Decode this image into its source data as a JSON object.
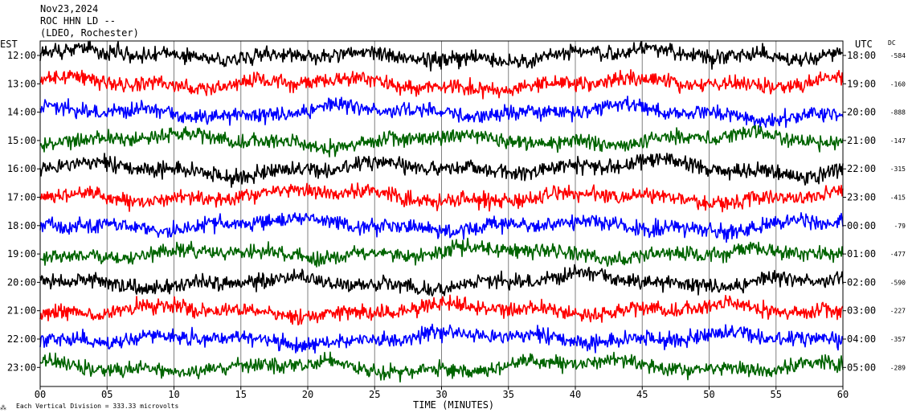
{
  "header": {
    "date": "Nov23,2024",
    "station": "ROC HHN LD --",
    "network": "(LDEO, Rochester)"
  },
  "axis": {
    "left_title": "EST",
    "right_title": "UTC",
    "dc_title": "DC",
    "xlabel": "TIME (MINUTES)",
    "xticks": [
      "00",
      "05",
      "10",
      "15",
      "20",
      "25",
      "30",
      "35",
      "40",
      "45",
      "50",
      "55",
      "60"
    ],
    "xlim": [
      0,
      60
    ]
  },
  "footer": {
    "scale_mark": "⁂",
    "scale_note": "Each Vertical Division =  333.33 microvolts"
  },
  "colors": {
    "black": "#000000",
    "red": "#ff0000",
    "blue": "#0000ff",
    "green": "#006400"
  },
  "chart_data": {
    "type": "line",
    "title": "Nov23,2024 ROC HHN LD --",
    "xlabel": "TIME (MINUTES)",
    "xlim": [
      0,
      60
    ],
    "grid": true,
    "rows": [
      {
        "est": "12:00",
        "utc": "18:00",
        "dc": "-584",
        "color": "black"
      },
      {
        "est": "13:00",
        "utc": "19:00",
        "dc": "-160",
        "color": "red"
      },
      {
        "est": "14:00",
        "utc": "20:00",
        "dc": "-888",
        "color": "blue"
      },
      {
        "est": "15:00",
        "utc": "21:00",
        "dc": "-147",
        "color": "green"
      },
      {
        "est": "16:00",
        "utc": "22:00",
        "dc": "-315",
        "color": "black"
      },
      {
        "est": "17:00",
        "utc": "23:00",
        "dc": "-415",
        "color": "red"
      },
      {
        "est": "18:00",
        "utc": "00:00",
        "dc": "-79",
        "color": "blue"
      },
      {
        "est": "19:00",
        "utc": "01:00",
        "dc": "-477",
        "color": "green"
      },
      {
        "est": "20:00",
        "utc": "02:00",
        "dc": "-590",
        "color": "black"
      },
      {
        "est": "21:00",
        "utc": "03:00",
        "dc": "-227",
        "color": "red"
      },
      {
        "est": "22:00",
        "utc": "04:00",
        "dc": "-357",
        "color": "blue"
      },
      {
        "est": "23:00",
        "utc": "05:00",
        "dc": "-289",
        "color": "green"
      }
    ]
  }
}
